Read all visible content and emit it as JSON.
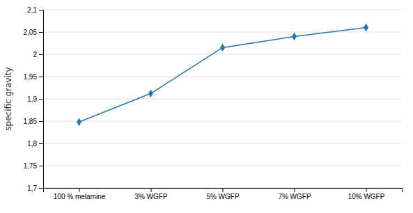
{
  "chart_data": {
    "type": "line",
    "ylabel": "specific gravity",
    "categories": [
      "100 % melamine",
      "3% WGFP",
      "5% WGFP",
      "7% WGFP",
      "10% WGFP"
    ],
    "values": [
      1.848,
      1.912,
      2.015,
      2.04,
      2.06
    ],
    "marker": "diamond",
    "ylim": [
      1.7,
      2.1
    ],
    "yticks": [
      {
        "value": 1.7,
        "label": "1,7"
      },
      {
        "value": 1.75,
        "label": "1,75"
      },
      {
        "value": 1.8,
        "label": "1,8"
      },
      {
        "value": 1.85,
        "label": "1,85"
      },
      {
        "value": 1.9,
        "label": "1,9"
      },
      {
        "value": 1.95,
        "label": "1,95"
      },
      2,
      {
        "value": 2.05,
        "label": "2,05"
      },
      {
        "value": 2.1,
        "label": "2,1"
      }
    ],
    "grid": true
  }
}
